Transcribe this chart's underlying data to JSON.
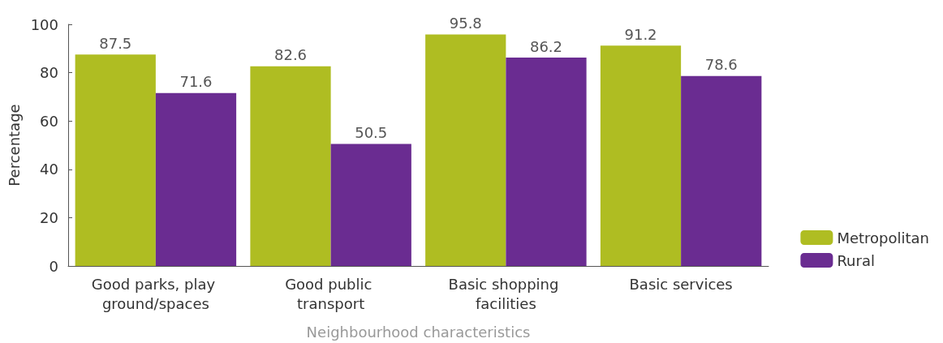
{
  "chart_data": {
    "type": "bar",
    "xlabel": "Neighbourhood characteristics",
    "ylabel": "Percentage",
    "categories": [
      "Good parks, play ground/spaces",
      "Good public transport",
      "Basic shopping facilities",
      "Basic services"
    ],
    "series": [
      {
        "name": "Metropolitan",
        "color": "#afbd22",
        "values": [
          87.5,
          82.6,
          95.8,
          91.2
        ]
      },
      {
        "name": "Rural",
        "color": "#6a2c91",
        "values": [
          71.6,
          50.5,
          86.2,
          78.6
        ]
      }
    ],
    "ylim": [
      0,
      100
    ],
    "yticks": [
      0,
      20,
      40,
      60,
      80,
      100
    ],
    "grid": false,
    "legend": "right",
    "data_labels": true
  }
}
